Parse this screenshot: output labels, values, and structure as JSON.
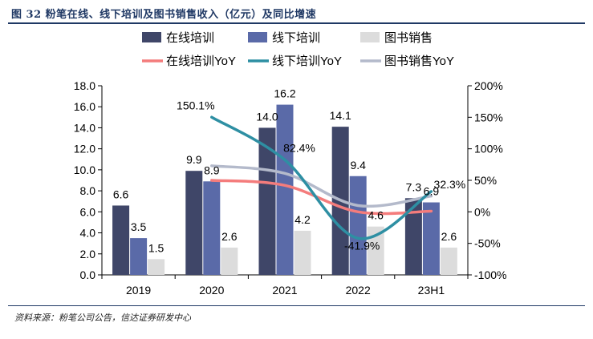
{
  "figure": {
    "title": "图 32  粉笔在线、线下培训及图书销售收入（亿元）及同比增速",
    "source": "资料来源：粉笔公司公告，信达证券研发中心"
  },
  "chart_data": {
    "type": "bar",
    "title": "",
    "categories": [
      "2019",
      "2020",
      "2021",
      "2022",
      "23H1"
    ],
    "ylim": [
      0,
      18
    ],
    "y_ticks": [
      "0.0",
      "2.0",
      "4.0",
      "6.0",
      "8.0",
      "10.0",
      "12.0",
      "14.0",
      "16.0",
      "18.0"
    ],
    "y2lim": [
      -100,
      200
    ],
    "y2_ticks": [
      "-100%",
      "-50%",
      "0%",
      "50%",
      "100%",
      "150%",
      "200%"
    ],
    "grid": false,
    "legend_position": "top",
    "bar_series": [
      {
        "name": "在线培训",
        "color": "#3F4668",
        "values": [
          6.6,
          9.9,
          14.0,
          14.1,
          7.3
        ],
        "labels": [
          "6.6",
          "9.9",
          "14.0",
          "14.1",
          "7.3"
        ]
      },
      {
        "name": "线下培训",
        "color": "#5A6AA8",
        "values": [
          3.5,
          8.9,
          16.2,
          9.4,
          6.9
        ],
        "labels": [
          "3.5",
          "8.9",
          "16.2",
          "9.4",
          "6.9"
        ]
      },
      {
        "name": "图书销售",
        "color": "#DCDCDC",
        "values": [
          1.5,
          2.6,
          4.2,
          4.6,
          2.6
        ],
        "labels": [
          "1.5",
          "2.6",
          "4.2",
          "4.6",
          "2.6"
        ]
      }
    ],
    "line_series": [
      {
        "name": "在线培训YoY",
        "color": "#F47C7C",
        "values": [
          null,
          50,
          42,
          0,
          1
        ],
        "labels": []
      },
      {
        "name": "线下培训YoY",
        "color": "#2E8FA3",
        "values": [
          null,
          150.1,
          82.4,
          -41.9,
          32.3
        ],
        "labels": [
          "",
          "150.1%",
          "82.4%",
          "-41.9%",
          "32.3%"
        ]
      },
      {
        "name": "图书销售YoY",
        "color": "#B4BACB",
        "values": [
          null,
          73,
          61,
          10,
          25
        ],
        "labels": []
      }
    ]
  }
}
